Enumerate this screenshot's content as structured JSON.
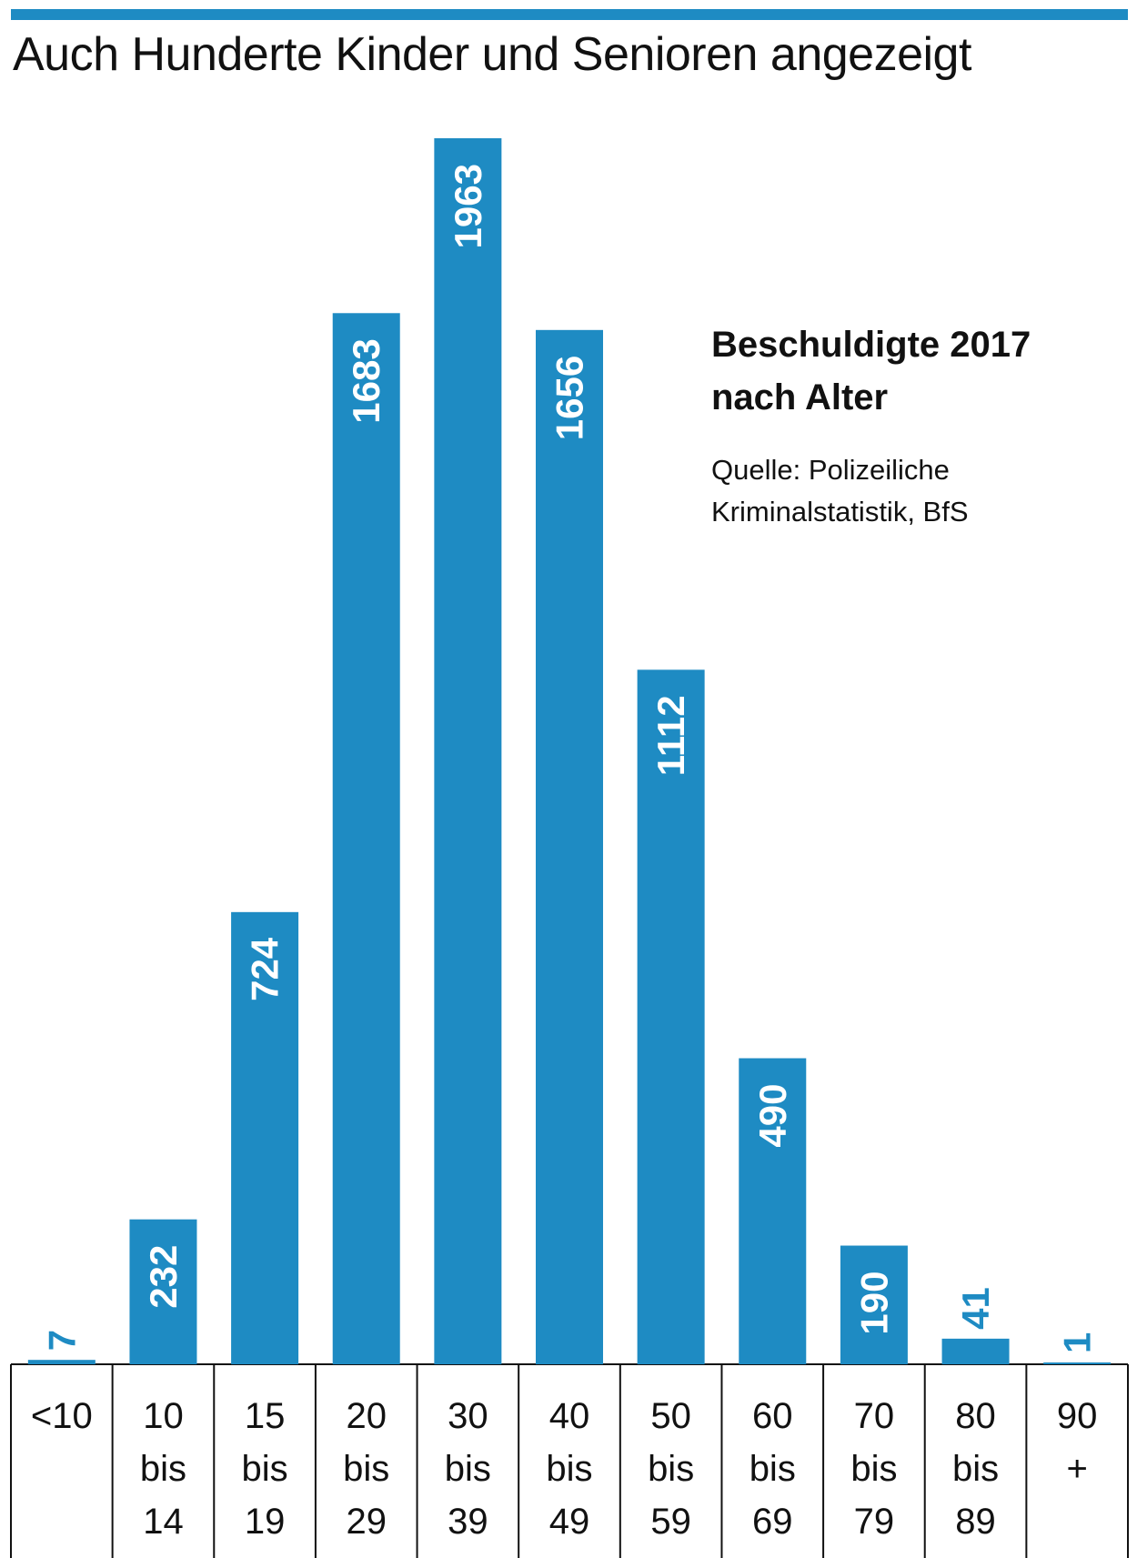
{
  "header": {
    "title": "Auch Hunderte Kinder und Senioren angezeigt"
  },
  "legend": {
    "subtitle": "Beschuldigte 2017 nach Alter",
    "source": "Quelle: Polizeiliche Kriminalstatistik, BfS"
  },
  "colors": {
    "accent": "#1e8bc3",
    "text": "#111111"
  },
  "chart_data": {
    "type": "bar",
    "title": "Auch Hunderte Kinder und Senioren angezeigt",
    "subtitle": "Beschuldigte 2017 nach Alter",
    "xlabel": "",
    "ylabel": "",
    "ylim": [
      0,
      1963
    ],
    "grid": false,
    "legend": "none",
    "categories": [
      [
        "<10"
      ],
      [
        "10",
        "bis",
        "14"
      ],
      [
        "15",
        "bis",
        "19"
      ],
      [
        "20",
        "bis",
        "29"
      ],
      [
        "30",
        "bis",
        "39"
      ],
      [
        "40",
        "bis",
        "49"
      ],
      [
        "50",
        "bis",
        "59"
      ],
      [
        "60",
        "bis",
        "69"
      ],
      [
        "70",
        "bis",
        "79"
      ],
      [
        "80",
        "bis",
        "89"
      ],
      [
        "90",
        "+"
      ]
    ],
    "values": [
      7,
      232,
      724,
      1683,
      1963,
      1656,
      1112,
      490,
      190,
      41,
      1
    ]
  }
}
